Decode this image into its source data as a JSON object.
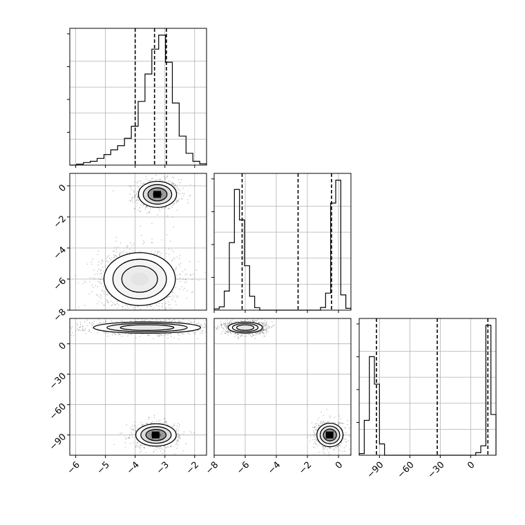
{
  "chart_data": {
    "type": "corner",
    "grid": true,
    "quantile_line_style": "dashed",
    "colors": {
      "line": "#000000",
      "grid": "#b0b0b0",
      "scatter": "#555555",
      "background": "#ffffff"
    },
    "params": [
      {
        "index": 0,
        "range": [
          -6.2,
          -1.6
        ],
        "ticks": [
          -6,
          -5,
          -4,
          -3,
          -2
        ],
        "quantiles": [
          -4.0,
          -3.35,
          -2.95
        ],
        "hist": {
          "edges": [
            -6.2,
            -1.6
          ],
          "counts": [
            0,
            0.3,
            0.8,
            1.2,
            2.1,
            3.3,
            4.8,
            6.1,
            8.4,
            12.2,
            20,
            28.6,
            36.4,
            40.8,
            32.3,
            19.5,
            9.1,
            3.7,
            1.2,
            0.4
          ]
        }
      },
      {
        "index": 1,
        "range": [
          -8.0,
          0.8
        ],
        "ticks": [
          -8,
          -6,
          -4,
          -2,
          0
        ],
        "quantiles": [
          -6.2,
          -2.6,
          -0.45
        ],
        "hist": {
          "edges": [
            -8.0,
            0.8
          ],
          "counts": [
            0.6,
            1.5,
            8.5,
            30.1,
            53.8,
            40.2,
            19.8,
            6.2,
            1.1,
            0,
            0,
            0,
            0,
            0,
            0,
            0,
            0,
            0,
            0,
            0,
            0,
            1.2,
            7.6,
            47.7,
            57.9,
            6.8,
            0.8
          ]
        }
      },
      {
        "index": 2,
        "range": [
          -110,
          25
        ],
        "ticks": [
          -90,
          -60,
          -30,
          0
        ],
        "quantiles": [
          -93,
          -33,
          17
        ],
        "hist": {
          "edges": [
            -110,
            25
          ],
          "counts": [
            0.5,
            10.8,
            30.5,
            22,
            3.5,
            0,
            0,
            0,
            0,
            0,
            0,
            0,
            0,
            0,
            0,
            0,
            0,
            0,
            0,
            0,
            0,
            0,
            0,
            0.8,
            2.9,
            40.2,
            12.6
          ]
        }
      }
    ],
    "pairs": [
      {
        "x": 0,
        "y": 1,
        "clusters": [
          {
            "cx": -3.25,
            "cy": -0.55,
            "sx": 0.32,
            "sy": 0.42,
            "n": 800,
            "dense": true
          },
          {
            "cx": -3.85,
            "cy": -6.0,
            "sx": 0.6,
            "sy": 0.85,
            "n": 1500,
            "dense": false
          }
        ]
      },
      {
        "x": 0,
        "y": 2,
        "clusters": [
          {
            "cx": -3.6,
            "cy": 16,
            "sx": 0.9,
            "sy": 2.8,
            "n": 1300,
            "dense": false
          },
          {
            "cx": -3.3,
            "cy": -90,
            "sx": 0.34,
            "sy": 5.5,
            "n": 800,
            "dense": true
          }
        ]
      },
      {
        "x": 1,
        "y": 2,
        "clusters": [
          {
            "cx": -6.0,
            "cy": 16,
            "sx": 0.55,
            "sy": 2.7,
            "n": 1300,
            "dense": false
          },
          {
            "cx": -0.55,
            "cy": -90,
            "sx": 0.42,
            "sy": 5.8,
            "n": 800,
            "dense": true
          }
        ]
      }
    ]
  }
}
